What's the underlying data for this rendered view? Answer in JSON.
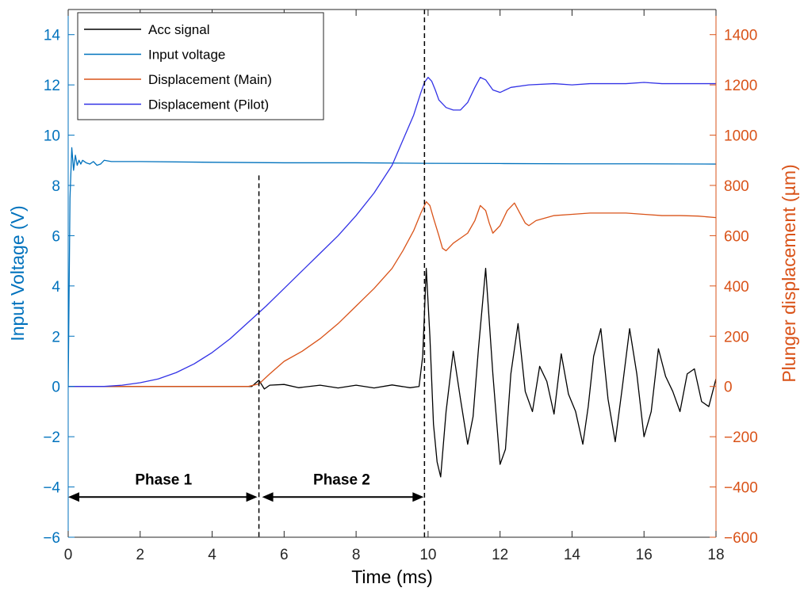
{
  "chart_data": {
    "type": "line",
    "title": "",
    "xlabel": "Time (ms)",
    "ylabel_left": "Input Voltage (V)",
    "ylabel_right": "Plunger displacement (µm)",
    "xlim": [
      0,
      18
    ],
    "ylim_left": [
      -6,
      15
    ],
    "ylim_right": [
      -600,
      1500
    ],
    "xticks": [
      0,
      2,
      4,
      6,
      8,
      10,
      12,
      14,
      16,
      18
    ],
    "yticks_left": [
      -6,
      -4,
      -2,
      0,
      2,
      4,
      6,
      8,
      10,
      12,
      14
    ],
    "yticks_right": [
      -600,
      -400,
      -200,
      0,
      200,
      400,
      600,
      800,
      1000,
      1200,
      1400
    ],
    "grid": false,
    "legend_position": "top-left",
    "colors": {
      "left_axis": "#0072BD",
      "right_axis": "#D95319"
    },
    "series": [
      {
        "name": "Acc signal",
        "axis": "left",
        "color": "#000000",
        "x": [
          0,
          5.1,
          5.3,
          5.45,
          5.6,
          6,
          6.4,
          7,
          7.5,
          8,
          8.5,
          9,
          9.5,
          9.75,
          9.85,
          9.95,
          10.05,
          10.15,
          10.25,
          10.35,
          10.5,
          10.7,
          10.9,
          11.1,
          11.25,
          11.4,
          11.6,
          11.8,
          12.0,
          12.15,
          12.3,
          12.5,
          12.7,
          12.9,
          13.1,
          13.3,
          13.5,
          13.7,
          13.9,
          14.1,
          14.3,
          14.45,
          14.6,
          14.8,
          15.0,
          15.2,
          15.4,
          15.6,
          15.8,
          16.0,
          16.2,
          16.4,
          16.6,
          16.8,
          17.0,
          17.2,
          17.4,
          17.6,
          17.8,
          18.0
        ],
        "y": [
          0,
          0,
          0.25,
          -0.1,
          0.05,
          0.08,
          -0.05,
          0.05,
          -0.06,
          0.05,
          -0.06,
          0.06,
          -0.05,
          0,
          1.2,
          4.7,
          2.0,
          -1.5,
          -3.0,
          -3.6,
          -1.0,
          1.4,
          -0.5,
          -2.3,
          -1.2,
          1.5,
          4.7,
          0.5,
          -3.1,
          -2.5,
          0.5,
          2.5,
          -0.2,
          -1.0,
          0.8,
          0.2,
          -1.1,
          1.3,
          -0.3,
          -1.0,
          -2.3,
          -0.8,
          1.2,
          2.3,
          -0.5,
          -2.2,
          0,
          2.3,
          0.5,
          -2.0,
          -1.0,
          1.5,
          0.4,
          -0.2,
          -1.0,
          0.5,
          0.7,
          -0.6,
          -0.8,
          0.3
        ]
      },
      {
        "name": "Input voltage",
        "axis": "left",
        "color": "#0072BD",
        "x": [
          0,
          0.05,
          0.1,
          0.15,
          0.2,
          0.25,
          0.3,
          0.35,
          0.4,
          0.5,
          0.6,
          0.7,
          0.8,
          0.9,
          1.0,
          1.2,
          2,
          4,
          6,
          8,
          10,
          12,
          14,
          16,
          18
        ],
        "y": [
          0,
          7.5,
          9.5,
          8.6,
          9.2,
          8.8,
          9.0,
          8.85,
          9.0,
          8.9,
          8.85,
          8.95,
          8.8,
          8.85,
          9.0,
          8.95,
          8.95,
          8.92,
          8.9,
          8.9,
          8.88,
          8.87,
          8.86,
          8.86,
          8.85
        ]
      },
      {
        "name": "Displacement (Main)",
        "axis": "right",
        "color": "#D95319",
        "x": [
          0,
          5.0,
          5.3,
          5.6,
          6.0,
          6.5,
          7.0,
          7.5,
          8.0,
          8.5,
          9.0,
          9.3,
          9.6,
          9.8,
          9.95,
          10.05,
          10.15,
          10.3,
          10.4,
          10.5,
          10.7,
          10.9,
          11.1,
          11.3,
          11.45,
          11.6,
          11.7,
          11.8,
          12.0,
          12.2,
          12.4,
          12.55,
          12.7,
          12.8,
          13.0,
          13.5,
          14.0,
          14.5,
          15.0,
          15.5,
          16.0,
          16.5,
          17.0,
          17.5,
          18.0
        ],
        "y": [
          0,
          0,
          10,
          50,
          100,
          140,
          190,
          250,
          320,
          390,
          470,
          540,
          620,
          690,
          735,
          720,
          670,
          600,
          550,
          540,
          570,
          590,
          610,
          660,
          720,
          700,
          650,
          610,
          640,
          700,
          730,
          690,
          650,
          640,
          660,
          680,
          685,
          690,
          690,
          690,
          685,
          680,
          680,
          678,
          672
        ]
      },
      {
        "name": "Displacement (Pilot)",
        "axis": "right",
        "color": "#3232E6",
        "x": [
          0,
          1,
          1.5,
          2,
          2.5,
          3,
          3.5,
          4,
          4.5,
          5,
          5.5,
          6,
          6.5,
          7,
          7.5,
          8,
          8.5,
          9,
          9.3,
          9.6,
          9.8,
          9.9,
          10.0,
          10.1,
          10.2,
          10.3,
          10.5,
          10.7,
          10.9,
          11.1,
          11.3,
          11.45,
          11.6,
          11.8,
          12.0,
          12.3,
          12.8,
          13.5,
          14.0,
          14.5,
          15.0,
          15.5,
          16.0,
          16.5,
          17.0,
          17.5,
          18.0
        ],
        "y": [
          0,
          0,
          5,
          15,
          30,
          55,
          90,
          135,
          190,
          255,
          320,
          390,
          460,
          530,
          600,
          680,
          770,
          880,
          980,
          1080,
          1170,
          1210,
          1230,
          1215,
          1180,
          1140,
          1110,
          1100,
          1100,
          1130,
          1190,
          1230,
          1220,
          1180,
          1170,
          1190,
          1200,
          1205,
          1200,
          1205,
          1205,
          1205,
          1210,
          1205,
          1205,
          1205,
          1205
        ]
      }
    ],
    "annotations": {
      "phase1_label": "Phase 1",
      "phase2_label": "Phase 2",
      "phase1_range": [
        0,
        5.3
      ],
      "phase2_range": [
        5.3,
        9.9
      ],
      "boundary_x": [
        5.3,
        9.9
      ],
      "arrow_y": -4.4
    }
  }
}
